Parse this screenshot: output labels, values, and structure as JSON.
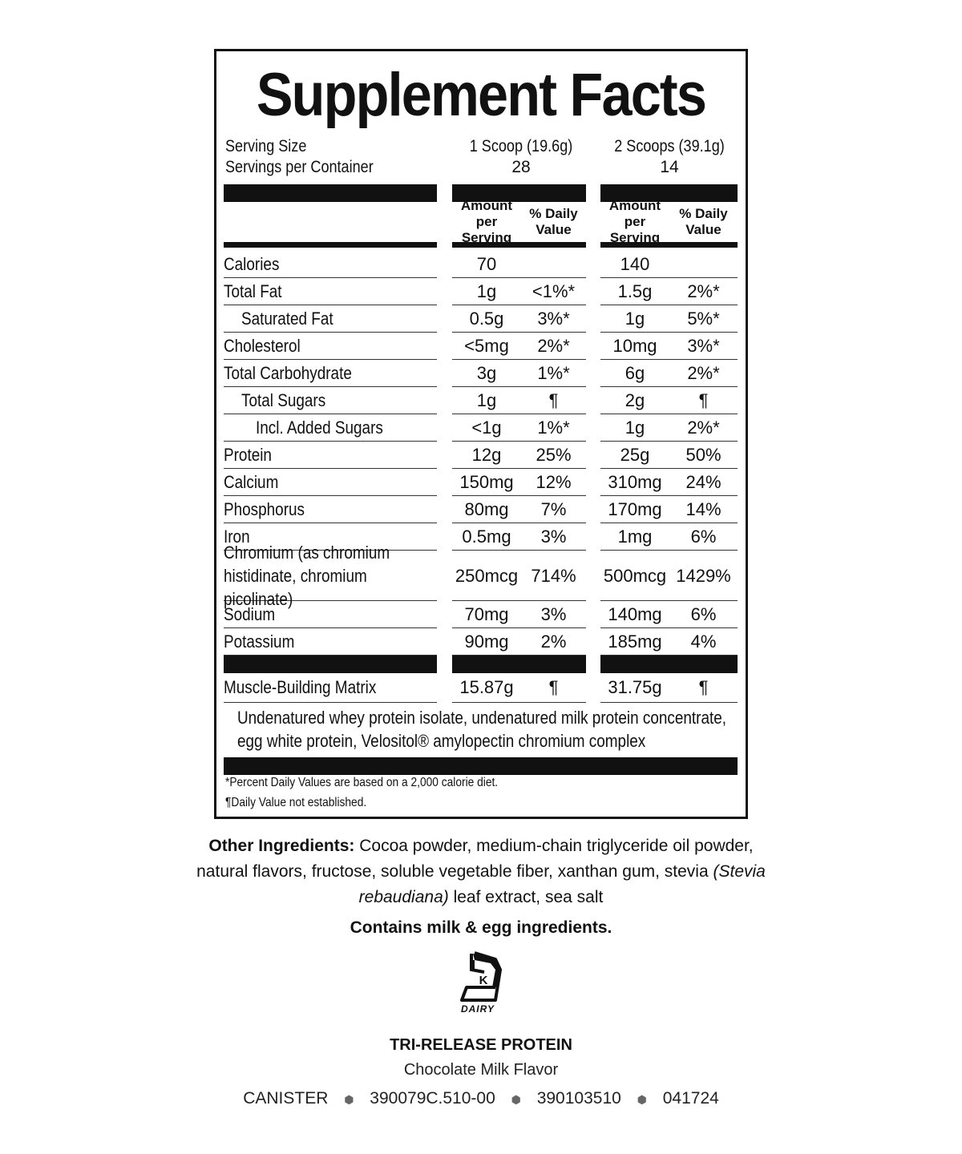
{
  "label": {
    "title": "Supplement Facts",
    "serving_size_label": "Serving Size",
    "servings_per_container_label": "Servings per Container",
    "serving1": {
      "size": "1 Scoop (19.6g)",
      "servings": "28"
    },
    "serving2": {
      "size": "2 Scoops (39.1g)",
      "servings": "14"
    },
    "headers": {
      "amount": "Amount per Serving",
      "dv": "% Daily Value"
    },
    "rows": [
      {
        "name": "Calories",
        "indent": 0,
        "a1": "70",
        "d1": "",
        "a2": "140",
        "d2": ""
      },
      {
        "name": "Total Fat",
        "indent": 0,
        "a1": "1g",
        "d1": "<1%*",
        "a2": "1.5g",
        "d2": "2%*"
      },
      {
        "name": "Saturated Fat",
        "indent": 1,
        "a1": "0.5g",
        "d1": "3%*",
        "a2": "1g",
        "d2": "5%*"
      },
      {
        "name": "Cholesterol",
        "indent": 0,
        "a1": "<5mg",
        "d1": "2%*",
        "a2": "10mg",
        "d2": "3%*"
      },
      {
        "name": "Total Carbohydrate",
        "indent": 0,
        "a1": "3g",
        "d1": "1%*",
        "a2": "6g",
        "d2": "2%*"
      },
      {
        "name": "Total Sugars",
        "indent": 1,
        "a1": "1g",
        "d1": "¶",
        "a2": "2g",
        "d2": "¶"
      },
      {
        "name": "Incl. Added Sugars",
        "indent": 2,
        "a1": "<1g",
        "d1": "1%*",
        "a2": "1g",
        "d2": "2%*"
      },
      {
        "name": "Protein",
        "indent": 0,
        "a1": "12g",
        "d1": "25%",
        "a2": "25g",
        "d2": "50%"
      },
      {
        "name": "Calcium",
        "indent": 0,
        "a1": "150mg",
        "d1": "12%",
        "a2": "310mg",
        "d2": "24%"
      },
      {
        "name": "Phosphorus",
        "indent": 0,
        "a1": "80mg",
        "d1": "7%",
        "a2": "170mg",
        "d2": "14%"
      },
      {
        "name": "Iron",
        "indent": 0,
        "a1": "0.5mg",
        "d1": "3%",
        "a2": "1mg",
        "d2": "6%"
      },
      {
        "name": "Chromium (as chromium histidinate, chromium picolinate)",
        "indent": 0,
        "tall": true,
        "a1": "250mcg",
        "d1": "714%",
        "a2": "500mcg",
        "d2": "1429%"
      },
      {
        "name": "Sodium",
        "indent": 0,
        "a1": "70mg",
        "d1": "3%",
        "a2": "140mg",
        "d2": "6%"
      },
      {
        "name": "Potassium",
        "indent": 0,
        "a1": "90mg",
        "d1": "2%",
        "a2": "185mg",
        "d2": "4%"
      }
    ],
    "matrix": {
      "name": "Muscle-Building Matrix",
      "a1": "15.87g",
      "d1": "¶",
      "a2": "31.75g",
      "d2": "¶",
      "ingredients": "Undenatured whey protein isolate, undenatured milk protein concentrate, egg white protein, Velositol® amylopectin chromium complex"
    },
    "footnote1": "*Percent Daily Values are based on a 2,000 calorie diet.",
    "footnote2": "¶Daily Value not established."
  },
  "other_ingredients": {
    "label": "Other Ingredients:",
    "text1": " Cocoa powder, medium-chain triglyceride oil powder, natural flavors, fructose, soluble vegetable fiber, xanthan gum, stevia ",
    "italic": "(Stevia rebaudiana)",
    "text2": " leaf extract, sea salt"
  },
  "allergen": "Contains milk & egg ingredients.",
  "kosher": {
    "letter": "K",
    "text": "DAIRY",
    "icon": "kosher-dairy-icon"
  },
  "product": {
    "name": "TRI-RELEASE PROTEIN",
    "flavor": "Chocolate Milk Flavor",
    "codes": [
      "CANISTER",
      "390079C.510-00",
      "390103510",
      "041724"
    ]
  }
}
